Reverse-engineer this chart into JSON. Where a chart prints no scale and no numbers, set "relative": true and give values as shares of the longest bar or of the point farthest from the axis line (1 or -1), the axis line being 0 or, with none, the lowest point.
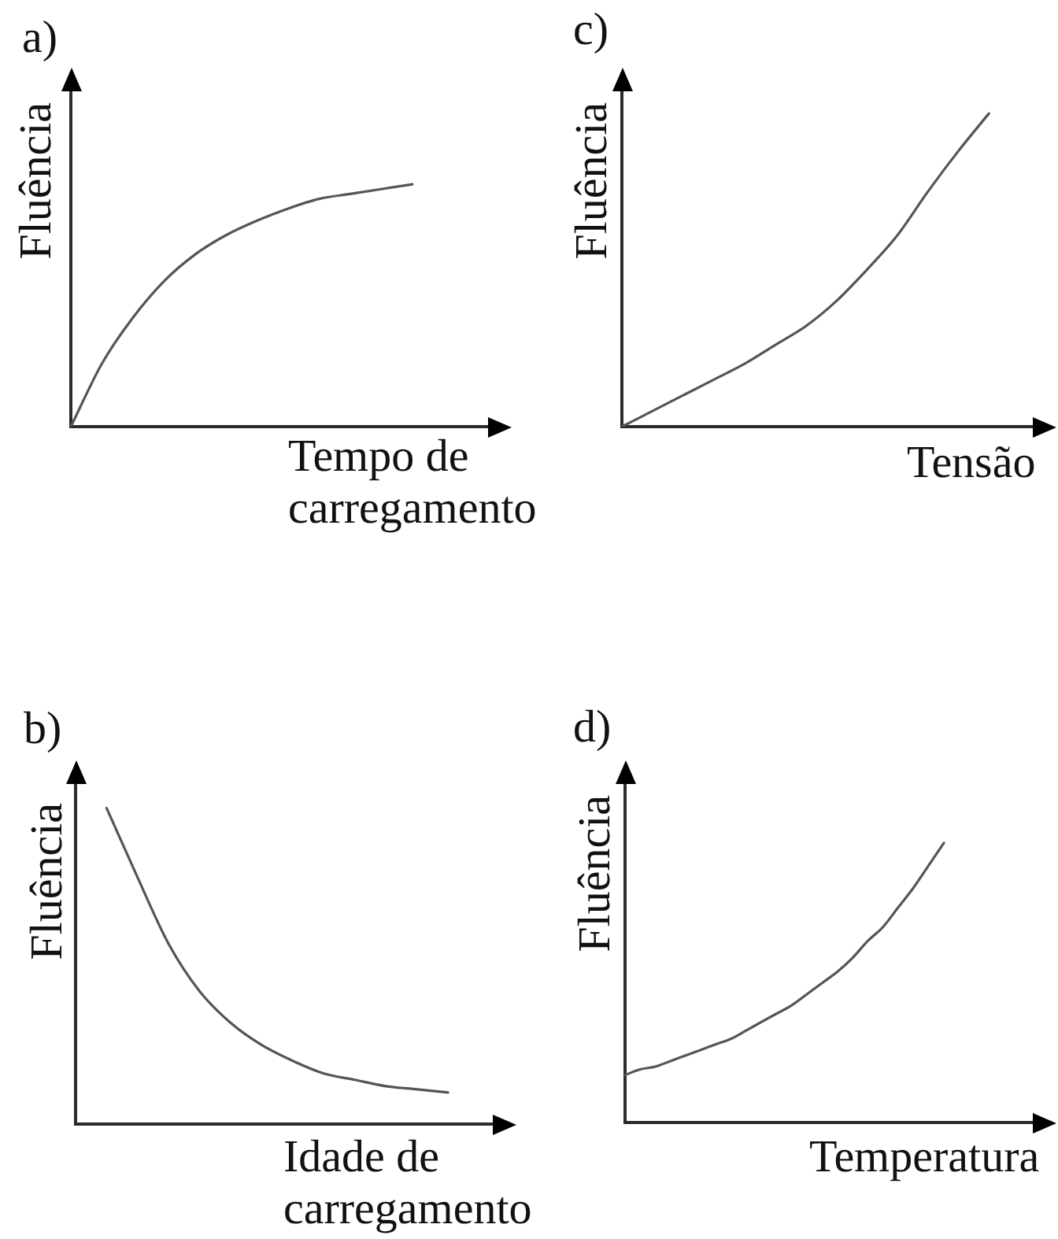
{
  "chart_data": [
    {
      "type": "line",
      "title": "a)",
      "xlabel": "Tempo de carregamento",
      "ylabel": "Fluência",
      "relative": true,
      "tick_labels": false,
      "color": "#555555",
      "categories": [
        null,
        null,
        null,
        null,
        null,
        null,
        null,
        null,
        null,
        null,
        null,
        null,
        null,
        null,
        null
      ],
      "values": [
        0,
        0.26,
        0.45,
        0.6,
        0.71,
        0.79,
        0.85,
        0.9,
        0.94,
        0.96,
        0.98,
        1,
        null,
        null,
        null
      ]
    },
    {
      "type": "line",
      "title": "c)",
      "xlabel": "Tensão",
      "ylabel": "Fluência",
      "relative": true,
      "tick_labels": false,
      "color": "#555555",
      "categories": [
        null,
        null,
        null,
        null,
        null,
        null,
        null,
        null,
        null,
        null,
        null,
        null,
        null,
        null,
        null
      ],
      "values": [
        0,
        0.05,
        0.1,
        0.15,
        0.2,
        0.26,
        0.32,
        0.4,
        0.5,
        0.61,
        0.75,
        0.88,
        1,
        null,
        null
      ]
    },
    {
      "type": "line",
      "title": "b)",
      "xlabel": "Idade de carregamento",
      "ylabel": "Fluência",
      "relative": true,
      "tick_labels": false,
      "color": "#555555",
      "categories": [
        null,
        null,
        null,
        null,
        null,
        null,
        null,
        null,
        null,
        null,
        null,
        null,
        null,
        null,
        null
      ],
      "values": [
        null,
        1,
        0.78,
        0.57,
        0.42,
        0.32,
        0.25,
        0.2,
        0.16,
        0.14,
        0.12,
        0.11,
        0.1,
        null,
        null
      ]
    },
    {
      "type": "line",
      "title": "d)",
      "xlabel": "Temperatura",
      "ylabel": "Fluência",
      "relative": true,
      "tick_labels": false,
      "color": "#555555",
      "categories": [
        null,
        null,
        null,
        null,
        null,
        null,
        null,
        null,
        null,
        null,
        null,
        null,
        null,
        null,
        null,
        null,
        null,
        null,
        null,
        null,
        null,
        null,
        null,
        null,
        null,
        null,
        null,
        null,
        null
      ],
      "values": [
        0.17,
        0.19,
        0.2,
        0.22,
        0.24,
        0.26,
        0.28,
        0.3,
        0.33,
        0.36,
        0.39,
        0.42,
        0.46,
        0.5,
        0.54,
        0.59,
        0.65,
        0.7,
        0.77,
        0.84,
        0.92,
        1,
        null,
        null,
        null,
        null,
        null,
        null,
        null
      ]
    }
  ]
}
